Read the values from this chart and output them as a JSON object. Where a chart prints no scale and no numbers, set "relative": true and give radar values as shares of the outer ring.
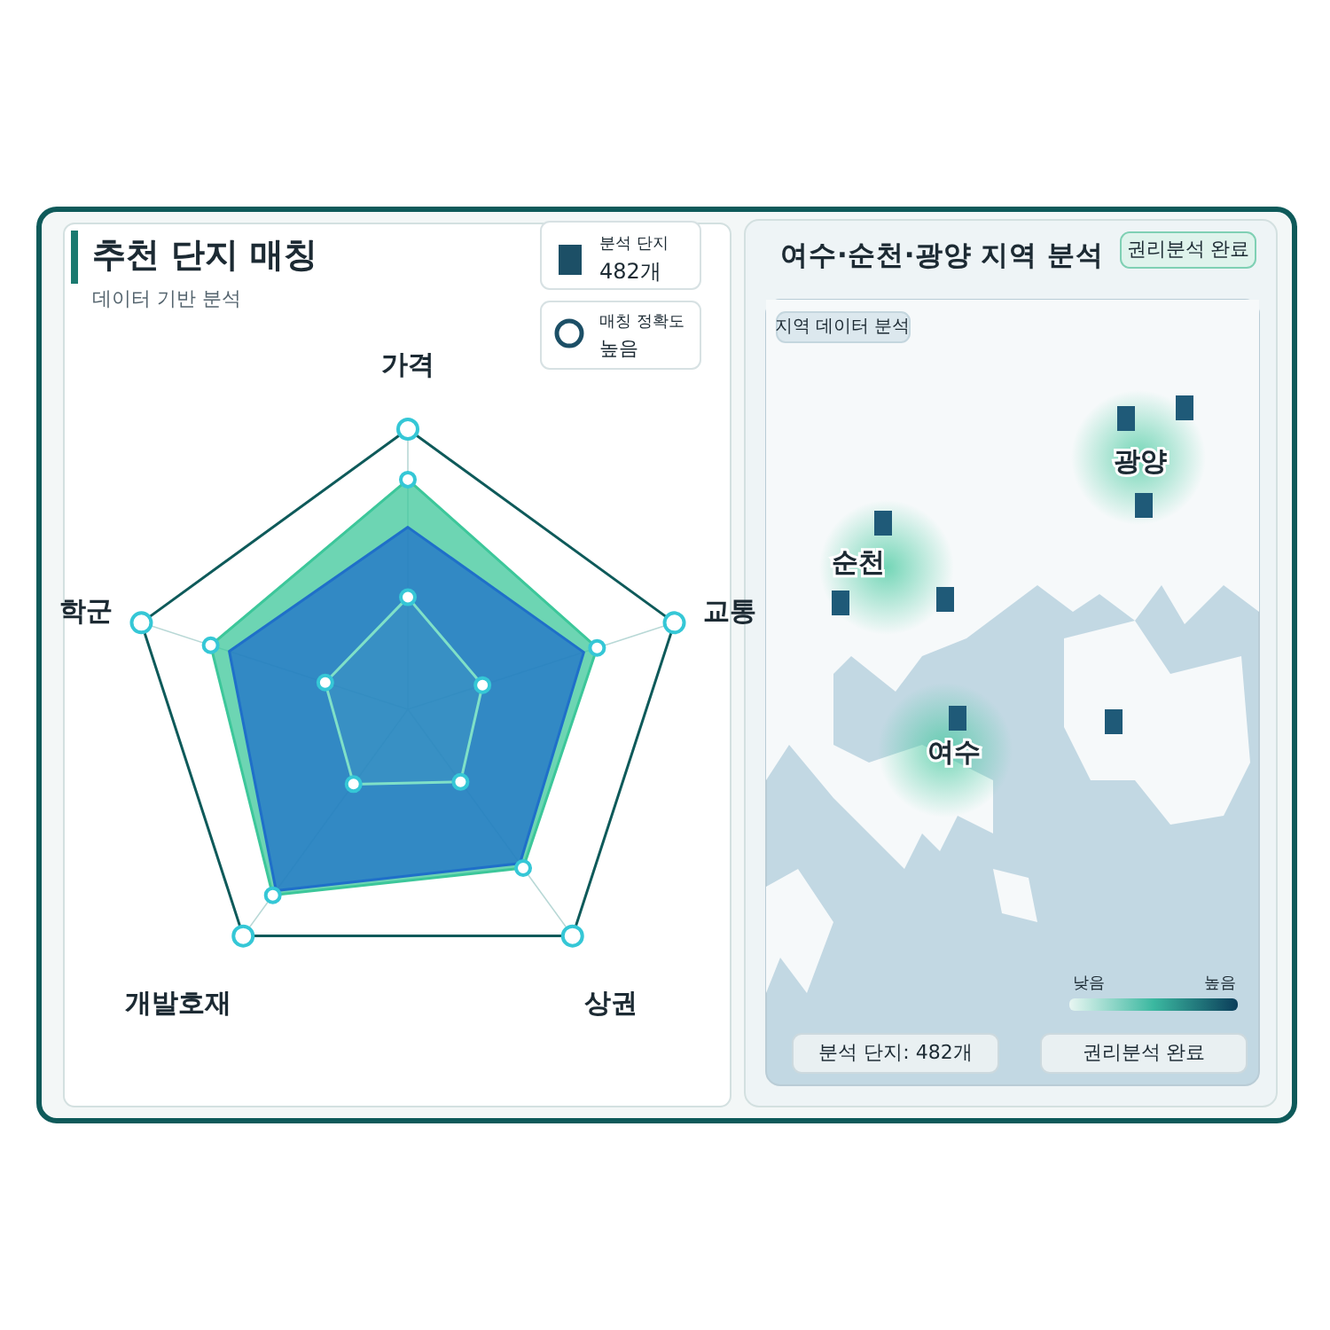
{
  "chart_data": [
    {
      "type": "radar",
      "title": "추천 단지 매칭",
      "subtitle": "데이터 기반 분석",
      "relative": true,
      "marker": "circle",
      "categories": [
        "가격",
        "교통",
        "상권",
        "개발호재",
        "학군"
      ],
      "series": [
        {
          "color": "#3cc79a",
          "values": [
            0.82,
            0.71,
            0.7,
            0.82,
            0.74
          ]
        },
        {
          "color": "#1f6fc9",
          "marker": "none",
          "values": [
            0.65,
            0.66,
            0.68,
            0.8,
            0.67
          ]
        },
        {
          "color": "#7fe0c8",
          "values": [
            0.4,
            0.28,
            0.32,
            0.33,
            0.31
          ]
        }
      ],
      "annotations": [
        "분석 단지",
        "482개",
        "매칭 정확도",
        "높음"
      ]
    },
    {
      "type": "other",
      "title": "여수·순천·광양 지역 분석",
      "annotations": [
        "권리분석 완료",
        "지역 데이터 분석",
        "광양",
        "순천",
        "여수",
        "낮음",
        "높음",
        "분석 단지: 482개",
        "권리분석 완료"
      ]
    }
  ]
}
